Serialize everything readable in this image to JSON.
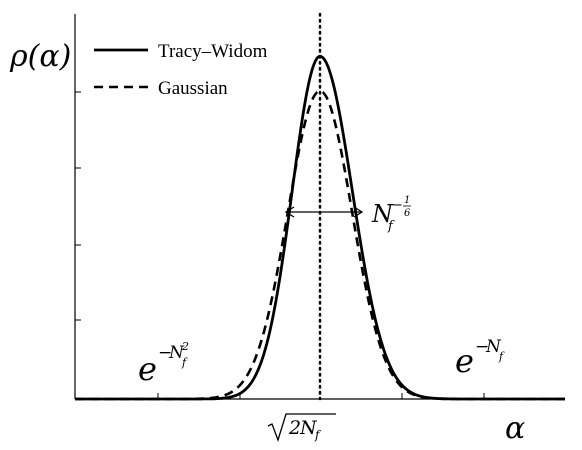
{
  "chart_data": {
    "type": "line",
    "title": "",
    "ylabel": "ρ(α)",
    "xlabel": "α",
    "x_tick_label": "√(2N_f)",
    "xlim": [
      -2,
      2
    ],
    "ylim": [
      0,
      1.0
    ],
    "grid": false,
    "legend_position": "top-left",
    "series": [
      {
        "name": "Tracy–Widom",
        "style": "solid",
        "color": "#000000",
        "peak_x": 0.0,
        "peak_y": 0.89
      },
      {
        "name": "Gaussian",
        "style": "dashed",
        "color": "#000000",
        "peak_x": 0.0,
        "peak_y": 0.8
      }
    ],
    "annotations": {
      "width_label": "N_f^{-1/6}",
      "left_tail_label": "e^{-N_f^2}",
      "right_tail_label": "e^{-N_f}"
    }
  }
}
